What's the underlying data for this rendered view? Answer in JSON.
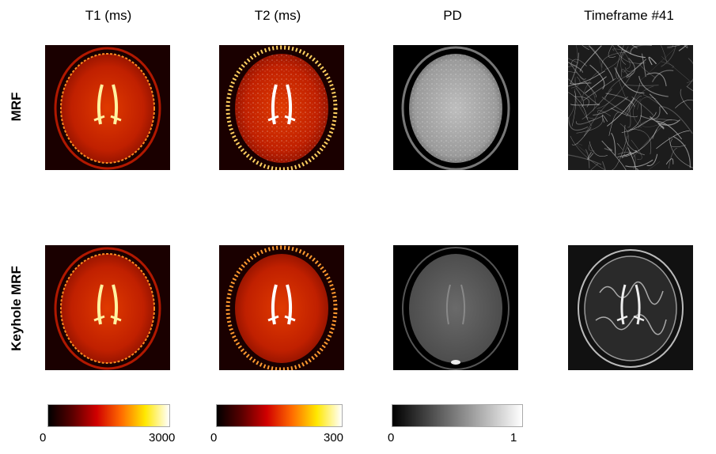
{
  "columns": [
    {
      "title": "T1 (ms)"
    },
    {
      "title": "T2 (ms)"
    },
    {
      "title": "PD"
    },
    {
      "title": "Timeframe #41"
    }
  ],
  "rows": [
    {
      "label": "MRF"
    },
    {
      "label": "Keyhole MRF"
    }
  ],
  "colorbars": [
    {
      "colormap": "hot",
      "min_label": "0",
      "max_label": "3000"
    },
    {
      "colormap": "hot",
      "min_label": "0",
      "max_label": "300"
    },
    {
      "colormap": "gray",
      "min_label": "0",
      "max_label": "1"
    }
  ],
  "images": [
    {
      "row": "MRF",
      "column": "T1 (ms)",
      "content": "axial-brain-slice",
      "colormap": "hot"
    },
    {
      "row": "MRF",
      "column": "T2 (ms)",
      "content": "axial-brain-slice",
      "colormap": "hot"
    },
    {
      "row": "MRF",
      "column": "PD",
      "content": "axial-brain-slice",
      "colormap": "gray"
    },
    {
      "row": "MRF",
      "column": "Timeframe #41",
      "content": "noise-streaks",
      "colormap": "gray"
    },
    {
      "row": "Keyhole MRF",
      "column": "T1 (ms)",
      "content": "axial-brain-slice",
      "colormap": "hot"
    },
    {
      "row": "Keyhole MRF",
      "column": "T2 (ms)",
      "content": "axial-brain-slice",
      "colormap": "hot"
    },
    {
      "row": "Keyhole MRF",
      "column": "PD",
      "content": "axial-brain-slice",
      "colormap": "gray"
    },
    {
      "row": "Keyhole MRF",
      "column": "Timeframe #41",
      "content": "axial-brain-slice",
      "colormap": "gray"
    }
  ]
}
